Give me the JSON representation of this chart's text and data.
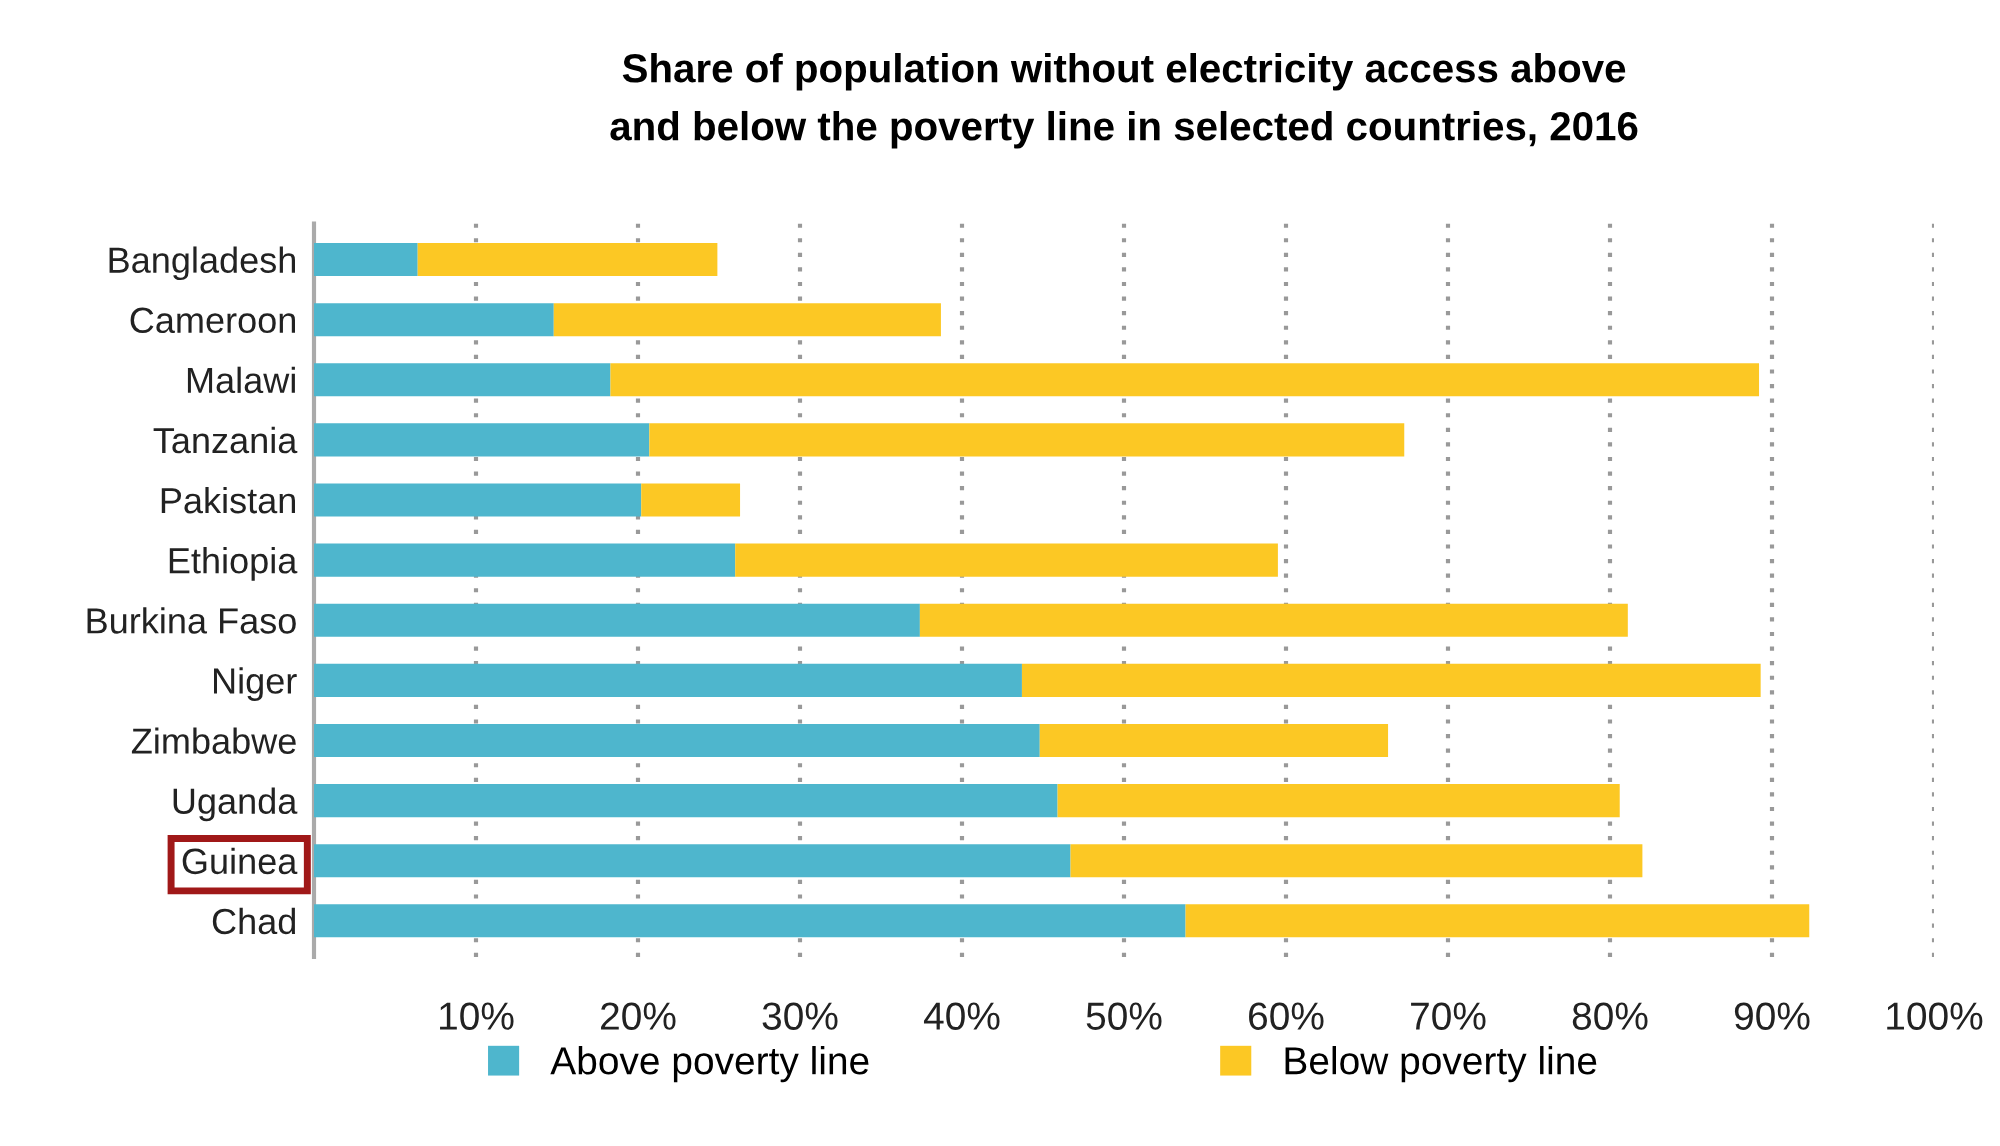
{
  "chart_data": {
    "type": "bar",
    "orientation": "horizontal",
    "stacked": true,
    "title": "Share of population without electricity access above\nand below the poverty line in selected countries, 2016",
    "categories": [
      "Bangladesh",
      "Cameroon",
      "Malawi",
      "Tanzania",
      "Pakistan",
      "Ethiopia",
      "Burkina Faso",
      "Niger",
      "Zimbabwe",
      "Uganda",
      "Guinea",
      "Chad"
    ],
    "series": [
      {
        "name": "Above poverty line",
        "color": "#4eb6cd",
        "values": [
          6.4,
          14.8,
          18.3,
          20.7,
          20.2,
          26.0,
          37.4,
          43.7,
          44.8,
          45.9,
          46.7,
          53.8
        ]
      },
      {
        "name": "Below poverty line",
        "color": "#fcc824",
        "values": [
          18.5,
          23.9,
          70.9,
          46.6,
          6.1,
          33.5,
          43.7,
          45.6,
          21.5,
          34.7,
          35.3,
          38.5
        ]
      }
    ],
    "xlim": [
      0,
      100
    ],
    "xticks": [
      {
        "value": 10,
        "label": "10%"
      },
      {
        "value": 20,
        "label": "20%"
      },
      {
        "value": 30,
        "label": "30%"
      },
      {
        "value": 40,
        "label": "40%"
      },
      {
        "value": 50,
        "label": "50%"
      },
      {
        "value": 60,
        "label": "60%"
      },
      {
        "value": 70,
        "label": "70%"
      },
      {
        "value": 80,
        "label": "80%"
      },
      {
        "value": 90,
        "label": "90%"
      },
      {
        "value": 100,
        "label": "100%"
      }
    ],
    "grid": "x",
    "legend": "bottom"
  }
}
